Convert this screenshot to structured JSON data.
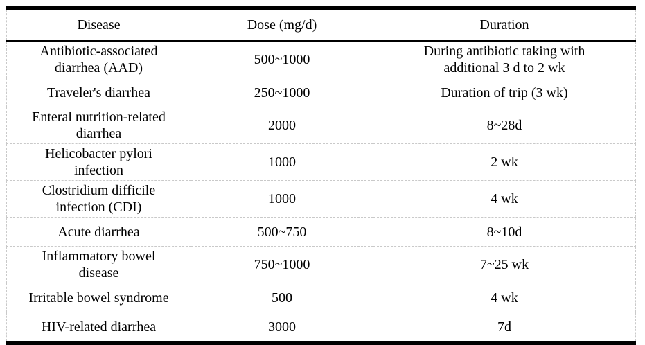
{
  "table": {
    "columns": [
      {
        "key": "disease",
        "label": "Disease"
      },
      {
        "key": "dose",
        "label": "Dose (mg/d)"
      },
      {
        "key": "duration",
        "label": "Duration"
      }
    ],
    "rows": [
      {
        "disease": "Antibiotic-associated\ndiarrhea (AAD)",
        "dose": "500~1000",
        "duration": "During antibiotic taking with\nadditional 3 d to 2 wk"
      },
      {
        "disease": "Traveler's diarrhea",
        "dose": "250~1000",
        "duration": "Duration of trip (3 wk)"
      },
      {
        "disease": "Enteral nutrition-related\ndiarrhea",
        "dose": "2000",
        "duration": "8~28d"
      },
      {
        "disease": "Helicobacter pylori\ninfection",
        "dose": "1000",
        "duration": "2 wk"
      },
      {
        "disease": "Clostridium difficile\ninfection (CDI)",
        "dose": "1000",
        "duration": "4 wk"
      },
      {
        "disease": "Acute diarrhea",
        "dose": "500~750",
        "duration": "8~10d"
      },
      {
        "disease": "Inflammatory bowel\ndisease",
        "dose": "750~1000",
        "duration": "7~25 wk"
      },
      {
        "disease": "Irritable bowel syndrome",
        "dose": "500",
        "duration": "4 wk"
      },
      {
        "disease": "HIV-related diarrhea",
        "dose": "3000",
        "duration": "7d"
      }
    ]
  },
  "colors": {
    "text": "#000000",
    "background": "#ffffff",
    "rule_heavy": "#000000",
    "grid_dashed": "#c9c9c9"
  }
}
